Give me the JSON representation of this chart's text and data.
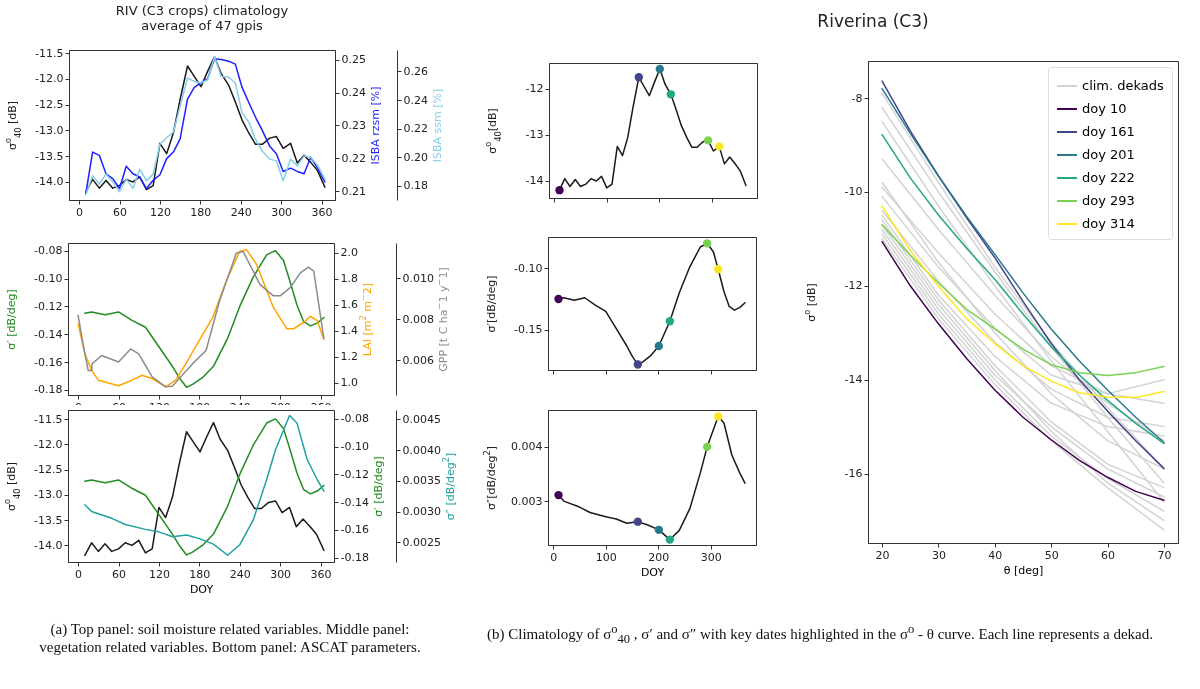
{
  "chart_data": [
    {
      "type": "line",
      "title": "RIV (C3 crops) climatology\naverage of 47 gpis",
      "ylabel": "σ$^{o}$$_{40}$ [dB]",
      "y2label": "ISBA rzsm [%]",
      "y3label": "ISBA ssm [%]",
      "xlim": [
        -15,
        380
      ],
      "xticks": [
        0,
        60,
        120,
        180,
        240,
        300,
        360
      ],
      "ylim": [
        -14.35,
        -11.44
      ],
      "yticks": [
        -11.5,
        {
          "value": -12,
          "label": "-12.0"
        },
        -12.5,
        {
          "value": -13,
          "label": "-13.0"
        },
        -13.5,
        {
          "value": -14,
          "label": "-14.0"
        }
      ],
      "y2lim": [
        0.2073,
        0.253
      ],
      "y2ticks": [
        0.21,
        0.22,
        0.23,
        0.24,
        0.25
      ],
      "y3lim": [
        0.17,
        0.275
      ],
      "y3ticks": [
        0.18,
        {
          "value": 0.2,
          "label": "0.20"
        },
        0.22,
        0.24,
        0.26
      ],
      "series": [
        {
          "color": "#1a1a1a",
          "axis": "y",
          "x": [
            10,
            20,
            30,
            40,
            50,
            60,
            70,
            80,
            90,
            100,
            110,
            120,
            130,
            140,
            150,
            161,
            171,
            181,
            191,
            201,
            211,
            222,
            232,
            242,
            252,
            262,
            272,
            283,
            293,
            303,
            314,
            324,
            334,
            344,
            354,
            365
          ],
          "values": [
            -14.2,
            -13.95,
            -14.12,
            -13.97,
            -14.12,
            -14.07,
            -13.95,
            -14.0,
            -13.9,
            -14.15,
            -14.07,
            -13.25,
            -13.45,
            -13.05,
            -12.4,
            -11.75,
            -11.95,
            -12.15,
            -11.85,
            -11.57,
            -11.9,
            -12.12,
            -12.45,
            -12.8,
            -13.05,
            -13.27,
            -13.27,
            -13.15,
            -13.12,
            -13.35,
            -13.25,
            -13.63,
            -13.48,
            -13.62,
            -13.78,
            -14.1
          ]
        },
        {
          "color": "#1f1fff",
          "axis": "y2",
          "x": [
            10,
            20,
            30,
            40,
            50,
            60,
            70,
            80,
            90,
            100,
            110,
            120,
            130,
            140,
            150,
            161,
            171,
            181,
            191,
            201,
            211,
            222,
            232,
            242,
            252,
            262,
            272,
            283,
            293,
            303,
            314,
            324,
            334,
            344,
            354,
            365
          ],
          "values": [
            0.2093,
            0.2219,
            0.2209,
            0.2153,
            0.2138,
            0.2108,
            0.2176,
            0.2153,
            0.2143,
            0.2108,
            0.2133,
            0.215,
            0.2199,
            0.2219,
            0.2259,
            0.238,
            0.2416,
            0.243,
            0.2443,
            0.2503,
            0.2501,
            0.2496,
            0.2487,
            0.2416,
            0.237,
            0.2325,
            0.2285,
            0.2237,
            0.2214,
            0.216,
            0.217,
            0.216,
            0.2153,
            0.2203,
            0.217,
            0.2128
          ]
        },
        {
          "color": "#87ceeb",
          "axis": "y3",
          "x": [
            10,
            20,
            30,
            40,
            50,
            60,
            70,
            80,
            90,
            100,
            110,
            120,
            130,
            140,
            150,
            161,
            171,
            181,
            191,
            201,
            211,
            222,
            232,
            242,
            252,
            262,
            272,
            283,
            293,
            303,
            314,
            324,
            334,
            344,
            354,
            365
          ],
          "values": [
            0.1737,
            0.1869,
            0.1811,
            0.1881,
            0.1827,
            0.1758,
            0.1846,
            0.1781,
            0.1916,
            0.1834,
            0.1881,
            0.209,
            0.2136,
            0.2175,
            0.2357,
            0.2554,
            0.253,
            0.2519,
            0.2542,
            0.2704,
            0.2565,
            0.2561,
            0.2519,
            0.231,
            0.2245,
            0.2124,
            0.2043,
            0.1986,
            0.1974,
            0.1834,
            0.1986,
            0.1939,
            0.2009,
            0.1997,
            0.1944,
            0.1846
          ]
        }
      ]
    },
    {
      "type": "line",
      "ylabel": "σ′ [dB/deg]",
      "y2label": "LAI [m$^{2}$ m$^{−}$2]",
      "y3label": "GPP [t C ha$^{−}$1 y$^{−}$1]",
      "xlim": [
        -15,
        380
      ],
      "xticks": [
        0,
        60,
        120,
        180,
        240,
        300,
        360
      ],
      "ylim": [
        -0.1836,
        -0.0745
      ],
      "yticks": [
        -0.08,
        {
          "value": -0.1,
          "label": "-0.10"
        },
        -0.12,
        -0.14,
        -0.16,
        -0.18
      ],
      "y2lim": [
        0.906,
        2.076
      ],
      "y2ticks": [
        {
          "value": 1,
          "label": "1.0"
        },
        1.2,
        1.4,
        1.6,
        1.8,
        {
          "value": 2,
          "label": "2.0"
        }
      ],
      "y3lim": [
        0.00431,
        0.01173
      ],
      "y3ticks": [
        0.006,
        0.008,
        {
          "value": 0.01,
          "label": "0.010"
        }
      ],
      "series": [
        {
          "color": "#228b22",
          "axis": "y",
          "x": [
            10,
            20,
            40,
            60,
            80,
            100,
            120,
            140,
            150,
            161,
            170,
            185,
            201,
            222,
            240,
            260,
            280,
            293,
            305,
            314,
            325,
            335,
            345,
            355,
            365
          ],
          "values": [
            -0.125,
            -0.124,
            -0.126,
            -0.124,
            -0.13,
            -0.135,
            -0.149,
            -0.163,
            -0.171,
            -0.178,
            -0.176,
            -0.171,
            -0.163,
            -0.143,
            -0.12,
            -0.099,
            -0.083,
            -0.08,
            -0.087,
            -0.101,
            -0.119,
            -0.131,
            -0.134,
            -0.132,
            -0.128
          ]
        },
        {
          "color": "#ffa500",
          "axis": "y2",
          "x": [
            0,
            10,
            20,
            30,
            60,
            80,
            95,
            110,
            130,
            145,
            160,
            180,
            200,
            220,
            240,
            250,
            265,
            290,
            310,
            320,
            335,
            345,
            355,
            365
          ],
          "values": [
            1.453,
            1.224,
            1.097,
            1.02,
            0.977,
            1.02,
            1.058,
            1.033,
            0.969,
            1.02,
            1.148,
            1.326,
            1.504,
            1.784,
            2.013,
            2.025,
            1.911,
            1.58,
            1.415,
            1.415,
            1.466,
            1.511,
            1.478,
            1.338
          ]
        },
        {
          "color": "#8c8c8c",
          "axis": "y3",
          "x": [
            0,
            8,
            15,
            20,
            21,
            35,
            60,
            78,
            90,
            110,
            130,
            140,
            170,
            190,
            210,
            235,
            245,
            270,
            290,
            300,
            315,
            330,
            342,
            350,
            365
          ],
          "values": [
            0.0082,
            0.0067,
            0.0055,
            0.0055,
            0.00584,
            0.00624,
            0.00592,
            0.00656,
            0.00632,
            0.00519,
            0.00471,
            0.00474,
            0.00584,
            0.00648,
            0.0089,
            0.01124,
            0.01132,
            0.00971,
            0.00915,
            0.00915,
            0.00955,
            0.01027,
            0.01055,
            0.01035,
            0.00705
          ]
        }
      ]
    },
    {
      "type": "line",
      "xlabel": "DOY",
      "ylabel": "σ$^{o}$$_{40}$ [dB]",
      "y2label": "σ′ [dB/deg]",
      "y3label": "σ″ [dB/deg$^{2}$]",
      "xlim": [
        -15,
        380
      ],
      "xticks": [
        0,
        60,
        120,
        180,
        240,
        300,
        360
      ],
      "ylim": [
        -14.33,
        -11.32
      ],
      "yticks": [
        -11.5,
        {
          "value": -12,
          "label": "-12.0"
        },
        -12.5,
        {
          "value": -13,
          "label": "-13.0"
        },
        -13.5,
        {
          "value": -14,
          "label": "-14.0"
        }
      ],
      "y2lim": [
        -0.1831,
        -0.0736
      ],
      "y2ticks": [
        -0.08,
        {
          "value": -0.1,
          "label": "-0.10"
        },
        -0.12,
        -0.14,
        -0.16,
        -0.18
      ],
      "y3lim": [
        0.00218,
        0.00465
      ],
      "y3ticks": [
        0.0025,
        {
          "value": 0.003,
          "label": "0.0030"
        },
        0.0035,
        {
          "value": 0.004,
          "label": "0.0040"
        },
        0.0045
      ],
      "annotations": [
        "(a) Top panel: soil moisture related variables. Middle panel: vegetation related variables. Bottom panel: ASCAT parameters."
      ],
      "series": [
        {
          "color": "#1a1a1a",
          "axis": "y",
          "x": [
            10,
            20,
            30,
            40,
            50,
            60,
            70,
            80,
            90,
            100,
            110,
            120,
            130,
            140,
            150,
            161,
            171,
            181,
            191,
            201,
            211,
            222,
            232,
            242,
            252,
            262,
            272,
            283,
            293,
            303,
            314,
            324,
            334,
            344,
            354,
            365
          ],
          "values": [
            -14.2,
            -13.95,
            -14.12,
            -13.97,
            -14.12,
            -14.07,
            -13.95,
            -14.0,
            -13.9,
            -14.15,
            -14.07,
            -13.25,
            -13.45,
            -13.05,
            -12.4,
            -11.75,
            -11.95,
            -12.15,
            -11.85,
            -11.57,
            -11.9,
            -12.12,
            -12.45,
            -12.8,
            -13.05,
            -13.27,
            -13.27,
            -13.15,
            -13.12,
            -13.35,
            -13.25,
            -13.63,
            -13.48,
            -13.62,
            -13.78,
            -14.1
          ]
        },
        {
          "color": "#228b22",
          "axis": "y2",
          "x": [
            10,
            20,
            40,
            60,
            80,
            100,
            120,
            140,
            150,
            161,
            170,
            185,
            201,
            222,
            240,
            260,
            280,
            293,
            305,
            314,
            325,
            335,
            345,
            355,
            365
          ],
          "values": [
            -0.125,
            -0.124,
            -0.126,
            -0.124,
            -0.13,
            -0.135,
            -0.149,
            -0.163,
            -0.171,
            -0.178,
            -0.176,
            -0.171,
            -0.163,
            -0.143,
            -0.12,
            -0.099,
            -0.083,
            -0.08,
            -0.087,
            -0.101,
            -0.119,
            -0.131,
            -0.134,
            -0.132,
            -0.128
          ]
        },
        {
          "color": "#20a0a0",
          "axis": "y3",
          "x": [
            10,
            20,
            50,
            70,
            100,
            120,
            140,
            161,
            180,
            201,
            222,
            240,
            260,
            280,
            293,
            314,
            325,
            340,
            355,
            365
          ],
          "values": [
            0.00311,
            0.003,
            0.00289,
            0.00279,
            0.00271,
            0.00267,
            0.00259,
            0.00262,
            0.00256,
            0.00247,
            0.00229,
            0.00246,
            0.00286,
            0.00352,
            0.004,
            0.00456,
            0.00444,
            0.00385,
            0.00352,
            0.00333
          ]
        }
      ]
    },
    {
      "type": "line",
      "ylabel": "σ$^{o}$$_{40}$[dB]",
      "tick_labels": "y",
      "xlim": [
        -10,
        386
      ],
      "xticks": [
        0,
        100,
        200,
        300
      ],
      "ylim": [
        -14.37,
        -11.44
      ],
      "yticks": [
        -12,
        -13,
        -14
      ],
      "series": [
        {
          "color": "#1a1a1a",
          "x": [
            10,
            20,
            30,
            40,
            50,
            60,
            70,
            80,
            90,
            100,
            110,
            120,
            130,
            140,
            150,
            161,
            171,
            181,
            191,
            201,
            211,
            222,
            232,
            242,
            252,
            262,
            272,
            283,
            293,
            303,
            314,
            324,
            334,
            344,
            354,
            365
          ],
          "values": [
            -14.2,
            -13.95,
            -14.12,
            -13.97,
            -14.12,
            -14.07,
            -13.95,
            -14.0,
            -13.9,
            -14.15,
            -14.07,
            -13.25,
            -13.45,
            -13.05,
            -12.4,
            -11.75,
            -11.95,
            -12.15,
            -11.85,
            -11.57,
            -11.9,
            -12.12,
            -12.45,
            -12.8,
            -13.05,
            -13.27,
            -13.27,
            -13.15,
            -13.12,
            -13.35,
            -13.25,
            -13.63,
            -13.48,
            -13.62,
            -13.78,
            -14.1
          ]
        },
        {
          "type": "scatter",
          "marker": "circle",
          "x": [
            10,
            161,
            201,
            222,
            293,
            314
          ],
          "colors": [
            "#440154",
            "#414487",
            "#2a788e",
            "#22a884",
            "#7ad151",
            "#fde725"
          ],
          "values": [
            -14.2,
            -11.75,
            -11.57,
            -12.12,
            -13.12,
            -13.25
          ]
        }
      ]
    },
    {
      "type": "line",
      "ylabel": "σ′[dB/deg]",
      "tick_labels": "y",
      "xlim": [
        -10,
        386
      ],
      "xticks": [
        0,
        100,
        200,
        300
      ],
      "ylim": [
        -0.1824,
        -0.0749
      ],
      "yticks": [
        {
          "value": -0.1,
          "label": "-0.10"
        },
        -0.15
      ],
      "series": [
        {
          "color": "#1a1a1a",
          "x": [
            10,
            20,
            40,
            60,
            80,
            100,
            120,
            140,
            150,
            161,
            170,
            185,
            201,
            222,
            240,
            260,
            280,
            293,
            305,
            314,
            325,
            335,
            345,
            355,
            365
          ],
          "values": [
            -0.125,
            -0.124,
            -0.126,
            -0.124,
            -0.13,
            -0.135,
            -0.149,
            -0.163,
            -0.171,
            -0.178,
            -0.176,
            -0.171,
            -0.163,
            -0.143,
            -0.12,
            -0.099,
            -0.083,
            -0.08,
            -0.087,
            -0.101,
            -0.119,
            -0.131,
            -0.134,
            -0.132,
            -0.128
          ]
        },
        {
          "type": "scatter",
          "marker": "circle",
          "x": [
            10,
            161,
            201,
            222,
            293,
            314
          ],
          "colors": [
            "#440154",
            "#414487",
            "#2a788e",
            "#22a884",
            "#7ad151",
            "#fde725"
          ],
          "values": [
            -0.125,
            -0.178,
            -0.163,
            -0.143,
            -0.08,
            -0.101
          ]
        }
      ]
    },
    {
      "type": "line",
      "xlabel": "DOY",
      "ylabel": "σ″[dB/deg$^{2}$]",
      "xlim": [
        -10,
        386
      ],
      "xticks": [
        0,
        100,
        200,
        300
      ],
      "ylim": [
        0.00219,
        0.00468
      ],
      "yticks": [
        0.003,
        0.004
      ],
      "series": [
        {
          "color": "#1a1a1a",
          "x": [
            10,
            20,
            50,
            70,
            100,
            120,
            140,
            161,
            180,
            201,
            222,
            240,
            260,
            280,
            293,
            314,
            325,
            340,
            355,
            365
          ],
          "values": [
            0.00311,
            0.003,
            0.00289,
            0.00279,
            0.00271,
            0.00267,
            0.00259,
            0.00262,
            0.00256,
            0.00247,
            0.00229,
            0.00246,
            0.00286,
            0.00352,
            0.004,
            0.00456,
            0.00444,
            0.00385,
            0.00352,
            0.00333
          ]
        },
        {
          "type": "scatter",
          "marker": "circle",
          "x": [
            10,
            161,
            201,
            222,
            293,
            314
          ],
          "colors": [
            "#440154",
            "#414487",
            "#2a788e",
            "#22a884",
            "#7ad151",
            "#fde725"
          ],
          "values": [
            0.00311,
            0.00262,
            0.00247,
            0.00229,
            0.004,
            0.00456
          ]
        }
      ]
    },
    {
      "type": "line",
      "title": "Riverina (C3)",
      "xlabel": "θ [deg]",
      "ylabel": "σ$^{o}$ [dB]",
      "legend": "top right",
      "xlim": [
        17.5,
        72.5
      ],
      "xticks": [
        20,
        30,
        40,
        50,
        60,
        70
      ],
      "ylim": [
        -17.48,
        -7.21
      ],
      "yticks": [
        -8,
        -10,
        -12,
        -14,
        -16
      ],
      "annotations": [
        "(b) Climatology of σ$^{o}$$_{40}$ , σ′ and σ″ with key dates highlighted in the σ$^{o}$ - θ curve. Each line represents a dekad."
      ],
      "series": [
        {
          "name": "clim. dekads",
          "color": "#d3d3d3",
          "x": [
            20,
            30,
            40,
            50,
            60,
            70
          ],
          "values": [
            -7.9,
            -9.8,
            -11.6,
            -13.2,
            -14.6,
            -15.9
          ]
        },
        {
          "color": "#d3d3d3",
          "x": [
            20,
            30,
            40,
            50,
            60,
            70
          ],
          "values": [
            -8.2,
            -10.0,
            -11.7,
            -13.3,
            -14.8,
            -16.2
          ]
        },
        {
          "color": "#d3d3d3",
          "x": [
            20,
            30,
            40,
            50,
            60,
            70
          ],
          "values": [
            -8.5,
            -10.3,
            -12.0,
            -13.6,
            -15.1,
            -16.6
          ]
        },
        {
          "color": "#d3d3d3",
          "x": [
            20,
            30,
            40,
            50,
            60,
            70
          ],
          "values": [
            -9.3,
            -10.8,
            -12.2,
            -13.5,
            -14.5,
            -15.3
          ]
        },
        {
          "color": "#d3d3d3",
          "x": [
            20,
            30,
            40,
            50,
            60,
            70
          ],
          "values": [
            -9.9,
            -11.3,
            -12.6,
            -13.7,
            -14.3,
            -14.5
          ]
        },
        {
          "color": "#d3d3d3",
          "x": [
            20,
            30,
            40,
            50,
            60,
            70
          ],
          "values": [
            -10.1,
            -11.6,
            -12.9,
            -13.9,
            -14.3,
            -14.0
          ]
        },
        {
          "color": "#d3d3d3",
          "x": [
            20,
            30,
            40,
            50,
            60,
            70
          ],
          "values": [
            -10.4,
            -11.9,
            -13.2,
            -14.2,
            -14.8,
            -15.0
          ]
        },
        {
          "color": "#d3d3d3",
          "x": [
            20,
            30,
            40,
            50,
            60,
            70
          ],
          "values": [
            -10.6,
            -12.3,
            -13.7,
            -14.9,
            -15.8,
            -16.3
          ]
        },
        {
          "color": "#d3d3d3",
          "x": [
            20,
            30,
            40,
            50,
            60,
            70
          ],
          "values": [
            -10.9,
            -12.6,
            -14.0,
            -15.2,
            -16.1,
            -16.8
          ]
        },
        {
          "color": "#d3d3d3",
          "x": [
            20,
            30,
            40,
            50,
            60,
            70
          ],
          "values": [
            -11.0,
            -12.7,
            -14.1,
            -15.3,
            -16.3,
            -17.2
          ]
        },
        {
          "color": "#d3d3d3",
          "x": [
            20,
            30,
            40,
            50,
            60,
            70
          ],
          "values": [
            -10.8,
            -12.5,
            -13.9,
            -15.0,
            -15.9,
            -16.5
          ]
        },
        {
          "color": "#d3d3d3",
          "x": [
            20,
            30,
            40,
            50,
            60,
            70
          ],
          "values": [
            -9.8,
            -11.5,
            -13.0,
            -14.3,
            -15.3,
            -15.9
          ]
        },
        {
          "color": "#d3d3d3",
          "x": [
            20,
            30,
            40,
            50,
            60,
            70
          ],
          "values": [
            -10.5,
            -12.2,
            -13.5,
            -14.5,
            -15.0,
            -15.2
          ]
        },
        {
          "color": "#d3d3d3",
          "x": [
            20,
            30,
            40,
            50,
            60,
            70
          ],
          "values": [
            -10.7,
            -12.4,
            -13.8,
            -15.1,
            -16.2,
            -17.0
          ]
        },
        {
          "name": "doy 10",
          "color": "#440154",
          "x": [
            20,
            25,
            30,
            35,
            40,
            45,
            50,
            55,
            60,
            65,
            70
          ],
          "values": [
            -11.06,
            -12.0,
            -12.81,
            -13.55,
            -14.22,
            -14.8,
            -15.28,
            -15.72,
            -16.08,
            -16.38,
            -16.57
          ]
        },
        {
          "name": "doy 161",
          "color": "#414487",
          "x": [
            20,
            25,
            30,
            35,
            40,
            45,
            50,
            55,
            60,
            65,
            70
          ],
          "values": [
            -7.64,
            -8.7,
            -9.66,
            -10.55,
            -11.4,
            -12.33,
            -13.23,
            -14.0,
            -14.67,
            -15.3,
            -15.89
          ]
        },
        {
          "name": "doy 201",
          "color": "#2a788e",
          "x": [
            20,
            25,
            30,
            35,
            40,
            45,
            50,
            55,
            60,
            65,
            70
          ],
          "values": [
            -7.8,
            -8.75,
            -9.66,
            -10.52,
            -11.33,
            -12.15,
            -12.92,
            -13.6,
            -14.22,
            -14.8,
            -15.34
          ]
        },
        {
          "name": "doy 222",
          "color": "#22a884",
          "x": [
            20,
            25,
            30,
            35,
            40,
            45,
            50,
            55,
            60,
            65,
            70
          ],
          "values": [
            -8.78,
            -9.7,
            -10.49,
            -11.2,
            -11.86,
            -12.6,
            -13.3,
            -13.9,
            -14.44,
            -14.93,
            -15.36
          ]
        },
        {
          "name": "doy 293",
          "color": "#7ad151",
          "x": [
            20,
            25,
            30,
            35,
            40,
            45,
            50,
            55,
            60,
            65,
            70
          ],
          "values": [
            -10.7,
            -11.35,
            -11.94,
            -12.5,
            -12.92,
            -13.35,
            -13.68,
            -13.85,
            -13.91,
            -13.85,
            -13.72
          ]
        },
        {
          "name": "doy 314",
          "color": "#fde725",
          "x": [
            20,
            25,
            30,
            35,
            40,
            45,
            50,
            55,
            60,
            65,
            70
          ],
          "values": [
            -10.3,
            -11.25,
            -12.01,
            -12.7,
            -13.23,
            -13.7,
            -14.03,
            -14.28,
            -14.37,
            -14.38,
            -14.25
          ]
        }
      ]
    }
  ]
}
